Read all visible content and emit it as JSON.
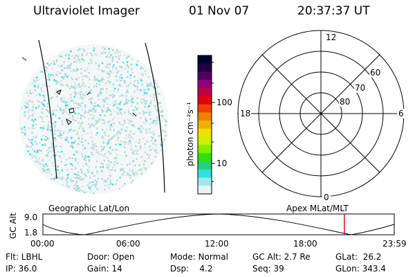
{
  "header": {
    "title": "Ultraviolet Imager",
    "date": "01 Nov 07",
    "time": "20:37:37 UT"
  },
  "colorbar": {
    "unit_label": "photon cm⁻²s⁻¹",
    "tick_labels": [
      "100",
      "10"
    ],
    "colors": [
      "#000030",
      "#200040",
      "#500060",
      "#90007a",
      "#c00040",
      "#e00010",
      "#f04000",
      "#f08000",
      "#f0b000",
      "#f0e000",
      "#c8f000",
      "#80f000",
      "#30e010",
      "#20d080",
      "#30e0e0",
      "#a0e8e8",
      "#e8f4f4"
    ]
  },
  "polar_plot": {
    "mlt_labels": {
      "top": "12",
      "right": "6",
      "bottom": "0",
      "left": "18"
    },
    "lat_labels": [
      "60",
      "70",
      "80"
    ]
  },
  "timeline": {
    "left_title": "Geographic Lat/Lon",
    "right_title": "Apex MLat/MLT",
    "y_axis_label": "GC Alt",
    "y_ticks": [
      "9.0",
      "1.8"
    ],
    "x_ticks": [
      "00:00",
      "06:00",
      "12:00",
      "18:00",
      "23:59"
    ],
    "current_time_fraction": 0.858,
    "marker_color": "#d00000"
  },
  "status": {
    "flt": "Flt: LBHL",
    "ip": "IP: 36.0",
    "door": "Door: Open",
    "gain": "Gain: 14",
    "mode": "Mode: Normal",
    "dsp": "Dsp:    4.2",
    "gc_alt": "GC Alt: 2.7 Re",
    "seq": "Seq: 39",
    "glat": "GLat:  26.2",
    "glon": "GLon: 343.4"
  }
}
